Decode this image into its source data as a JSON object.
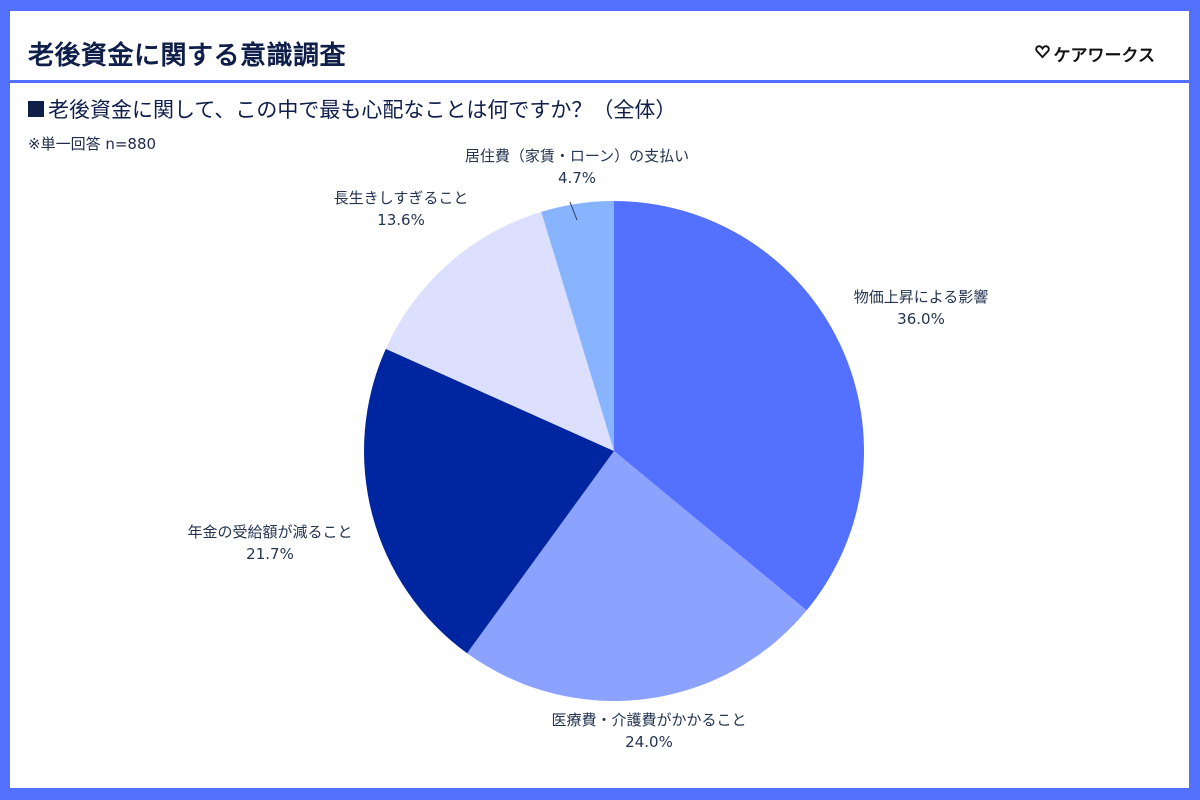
{
  "header": {
    "title": "老後資金に関する意識調査",
    "logo_text": "ケアワークス",
    "logo_icon": "heart-outline-icon"
  },
  "question": "老後資金に関して、この中で最も心配なことは何ですか？（全体）",
  "note": "※単一回答 n=880",
  "colors": {
    "frame": "#5470ff",
    "title_text": "#0f1f4a"
  },
  "chart_data": {
    "type": "pie",
    "title": "老後資金に関して、この中で最も心配なことは何ですか？（全体）",
    "subtitle": "※単一回答 n=880",
    "start_angle": "12 o'clock, clockwise",
    "categories": [
      "物価上昇による影響",
      "医療費・介護費がかかること",
      "年金の受給額が減ること",
      "長生きしすぎること",
      "居住費（家賃・ローン）の支払い"
    ],
    "values": [
      36.0,
      24.0,
      21.7,
      13.6,
      4.7
    ],
    "value_labels": [
      "36.0%",
      "24.0%",
      "21.7%",
      "13.6%",
      "4.7%"
    ],
    "colors": [
      "#5470ff",
      "#8ca2ff",
      "#0025a0",
      "#dcdffd",
      "#88b4ff"
    ],
    "legend": "none (direct labels)"
  },
  "labels": [
    {
      "name": "物価上昇による影響",
      "value": "36.0%"
    },
    {
      "name": "医療費・介護費がかかること",
      "value": "24.0%"
    },
    {
      "name": "年金の受給額が減ること",
      "value": "21.7%"
    },
    {
      "name": "長生きしすぎること",
      "value": "13.6%"
    },
    {
      "name": "居住費（家賃・ローン）の支払い",
      "value": "4.7%"
    }
  ]
}
